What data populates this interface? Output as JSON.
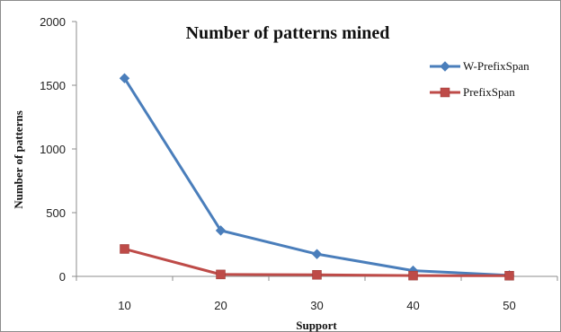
{
  "chart_data": {
    "type": "line",
    "title": "Number of patterns mined",
    "xlabel": "Support",
    "ylabel": "Number of patterns",
    "categories": [
      "10",
      "20",
      "30",
      "40",
      "50"
    ],
    "ylim": [
      0,
      2000
    ],
    "yticks": [
      "0",
      "500",
      "1000",
      "1500",
      "2000"
    ],
    "grid": false,
    "legend_position": "right",
    "series": [
      {
        "name": "W-PrefixSpan",
        "values": [
          1555,
          360,
          175,
          45,
          8
        ],
        "color": "#4a7ebb",
        "marker": "diamond"
      },
      {
        "name": "PrefixSpan",
        "values": [
          215,
          15,
          12,
          6,
          5
        ],
        "color": "#be4b48",
        "marker": "square"
      }
    ]
  }
}
